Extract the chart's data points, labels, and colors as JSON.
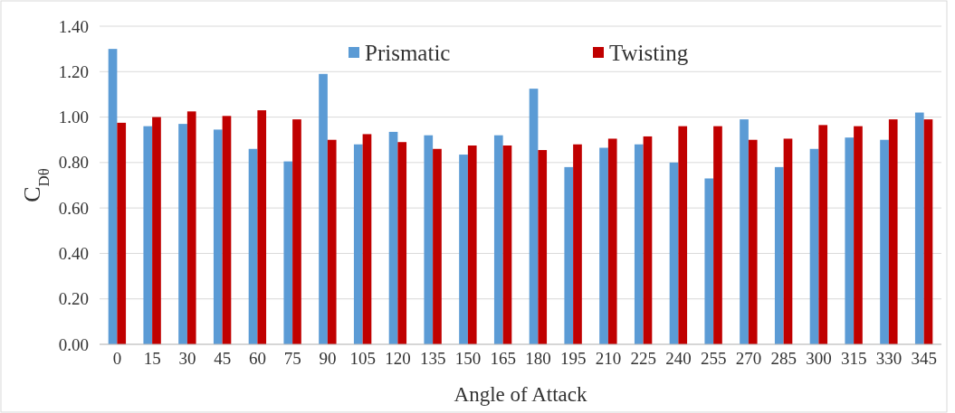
{
  "chart_data": {
    "type": "bar",
    "xlabel": "Angle of Attack",
    "ylabel": "C$_{Dθ}$",
    "categories": [
      "0",
      "15",
      "30",
      "45",
      "60",
      "75",
      "90",
      "105",
      "120",
      "135",
      "150",
      "165",
      "180",
      "195",
      "210",
      "225",
      "240",
      "255",
      "270",
      "285",
      "300",
      "315",
      "330",
      "345"
    ],
    "series": [
      {
        "name": "Prismatic",
        "color": "#5b9bd5",
        "values": [
          1.3,
          0.96,
          0.97,
          0.945,
          0.86,
          0.805,
          1.19,
          0.88,
          0.935,
          0.92,
          0.835,
          0.92,
          1.125,
          0.78,
          0.865,
          0.88,
          0.8,
          0.73,
          0.99,
          0.78,
          0.86,
          0.91,
          0.9,
          1.02
        ]
      },
      {
        "name": "Twisting",
        "color": "#c00000",
        "values": [
          0.975,
          1.0,
          1.025,
          1.005,
          1.03,
          0.99,
          0.9,
          0.925,
          0.89,
          0.86,
          0.875,
          0.875,
          0.855,
          0.88,
          0.905,
          0.915,
          0.96,
          0.96,
          0.9,
          0.905,
          0.965,
          0.96,
          0.99,
          0.99
        ]
      }
    ],
    "ylim": [
      0,
      1.4
    ],
    "yticks": [
      {
        "value": 0,
        "label": "0.00"
      },
      {
        "value": 0.2,
        "label": "0.20"
      },
      {
        "value": 0.4,
        "label": "0.40"
      },
      {
        "value": 0.6,
        "label": "0.60"
      },
      {
        "value": 0.8,
        "label": "0.80"
      },
      {
        "value": 1.0,
        "label": "1.00"
      },
      {
        "value": 1.2,
        "label": "1.20"
      },
      {
        "value": 1.4,
        "label": "1.40"
      }
    ],
    "grid": "y",
    "legend": "top"
  }
}
